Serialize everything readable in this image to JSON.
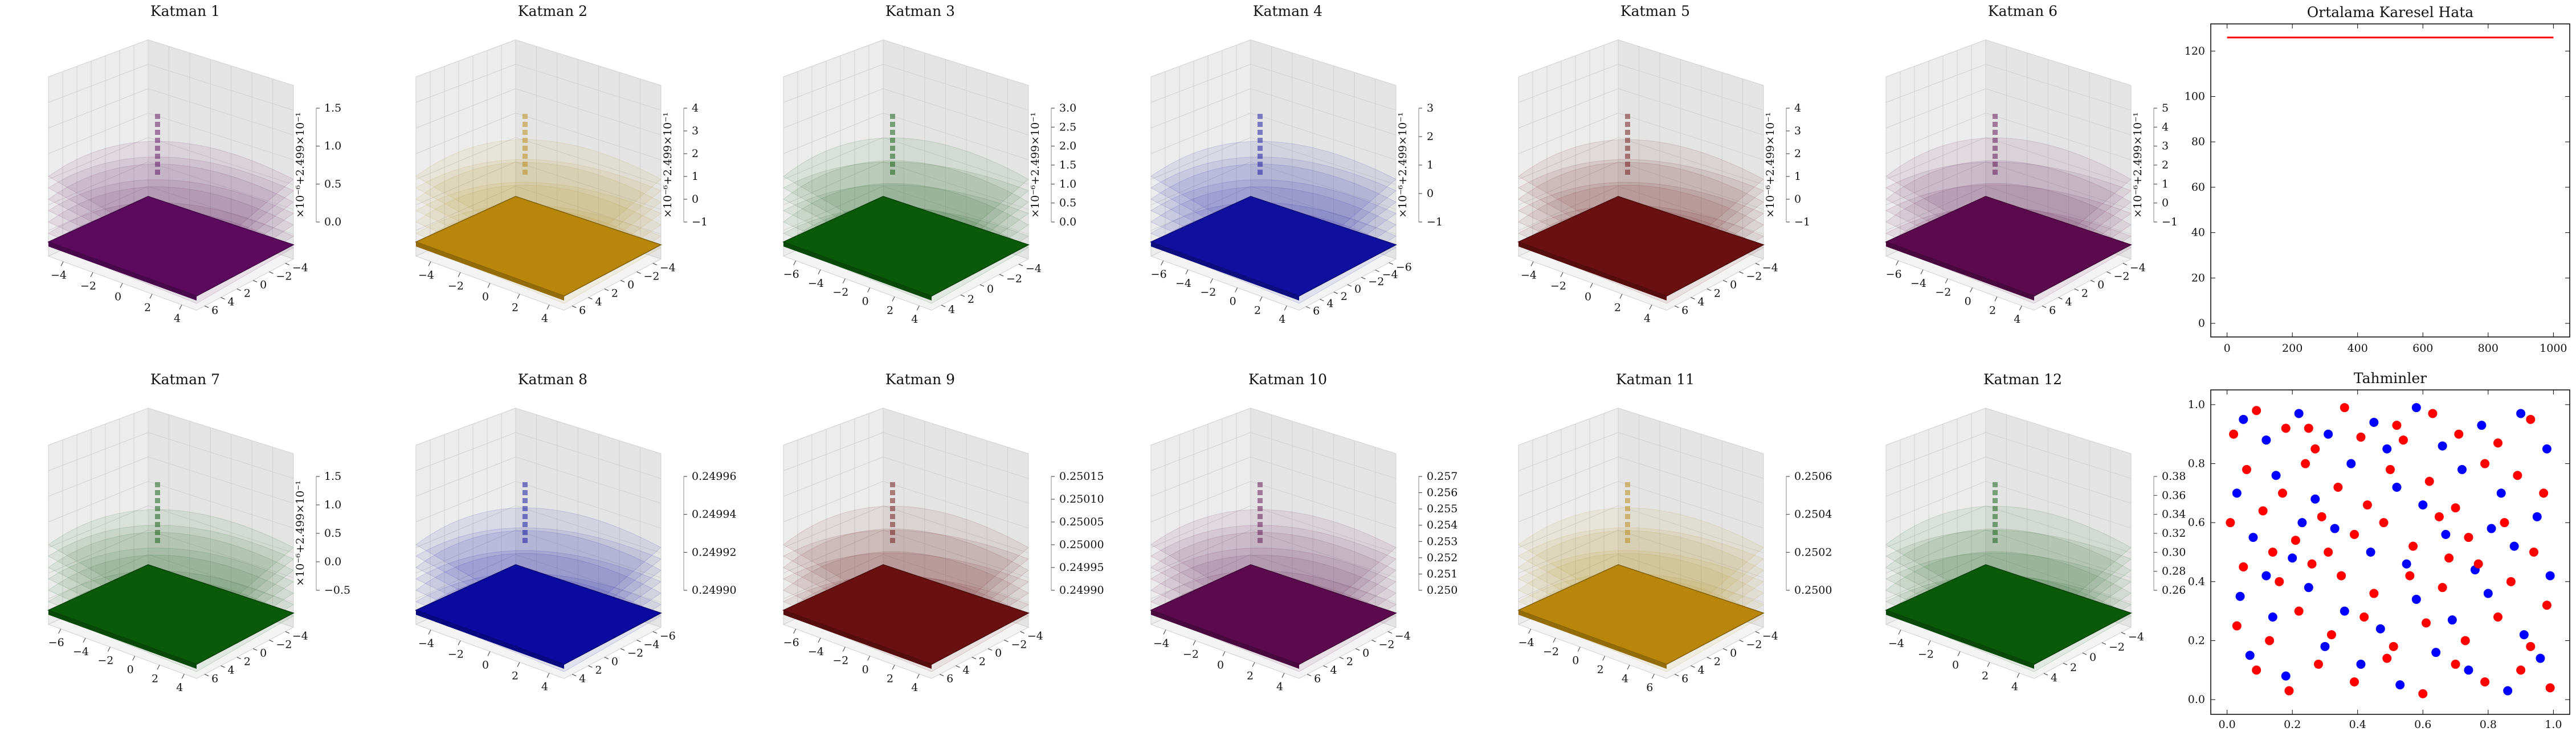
{
  "figure": {
    "surface_titles": [
      "Katman 1",
      "Katman 2",
      "Katman 3",
      "Katman 4",
      "Katman 5",
      "Katman 6",
      "Katman 7",
      "Katman 8",
      "Katman 9",
      "Katman 10",
      "Katman 11",
      "Katman 12"
    ],
    "offset_label": "×10⁻⁶+2.499×10⁻¹"
  },
  "chart_data": [
    {
      "type": "surface",
      "title": "Katman 1",
      "color": "#5b0a5e",
      "xticks": [
        "−4",
        "−2",
        "0",
        "2",
        "4"
      ],
      "yticks": [
        "−4",
        "−2",
        "0",
        "2",
        "4",
        "6"
      ],
      "zticks": [
        "0.0",
        "0.5",
        "1.0",
        "1.5"
      ],
      "offset": true
    },
    {
      "type": "surface",
      "title": "Katman 2",
      "color": "#b8860b",
      "xticks": [
        "−4",
        "−2",
        "0",
        "2",
        "4"
      ],
      "yticks": [
        "−4",
        "−2",
        "0",
        "2",
        "4",
        "6"
      ],
      "zticks": [
        "−1",
        "0",
        "1",
        "2",
        "3",
        "4"
      ],
      "offset": true
    },
    {
      "type": "surface",
      "title": "Katman 3",
      "color": "#0a5a0a",
      "xticks": [
        "−6",
        "−4",
        "−2",
        "0",
        "2",
        "4"
      ],
      "yticks": [
        "−4",
        "−2",
        "0",
        "2",
        "4"
      ],
      "zticks": [
        "0.0",
        "0.5",
        "1.0",
        "1.5",
        "2.0",
        "2.5",
        "3.0"
      ],
      "offset": true
    },
    {
      "type": "surface",
      "title": "Katman 4",
      "color": "#1010a0",
      "xticks": [
        "−6",
        "−4",
        "−2",
        "0",
        "2",
        "4"
      ],
      "yticks": [
        "−6",
        "−4",
        "−2",
        "0",
        "2",
        "4",
        "6"
      ],
      "zticks": [
        "−1",
        "0",
        "1",
        "2",
        "3"
      ],
      "offset": true
    },
    {
      "type": "surface",
      "title": "Katman 5",
      "color": "#6b1010",
      "xticks": [
        "−4",
        "−2",
        "0",
        "2",
        "4"
      ],
      "yticks": [
        "−4",
        "−2",
        "0",
        "2",
        "4",
        "6"
      ],
      "zticks": [
        "−1",
        "0",
        "1",
        "2",
        "3",
        "4"
      ],
      "offset": true
    },
    {
      "type": "surface",
      "title": "Katman 6",
      "color": "#5b0a4e",
      "xticks": [
        "−6",
        "−4",
        "−2",
        "0",
        "2",
        "4"
      ],
      "yticks": [
        "−4",
        "−2",
        "0",
        "2",
        "4",
        "6"
      ],
      "zticks": [
        "−1",
        "0",
        "1",
        "2",
        "3",
        "4",
        "5"
      ],
      "offset": true
    },
    {
      "type": "surface",
      "title": "Katman 7",
      "color": "#0a5a0a",
      "xticks": [
        "−6",
        "−4",
        "−2",
        "0",
        "2",
        "4"
      ],
      "yticks": [
        "−4",
        "−2",
        "0",
        "2",
        "4",
        "6"
      ],
      "zticks": [
        "−0.5",
        "0.0",
        "0.5",
        "1.0",
        "1.5"
      ],
      "offset": true
    },
    {
      "type": "surface",
      "title": "Katman 8",
      "color": "#0a0aa0",
      "xticks": [
        "−4",
        "−2",
        "0",
        "2",
        "4"
      ],
      "yticks": [
        "−6",
        "−4",
        "−2",
        "0",
        "2",
        "4"
      ],
      "zticks": [
        "0.24990",
        "0.24992",
        "0.24994",
        "0.24996"
      ],
      "offset": false
    },
    {
      "type": "surface",
      "title": "Katman 9",
      "color": "#6b1010",
      "xticks": [
        "−6",
        "−4",
        "−2",
        "0",
        "2",
        "4"
      ],
      "yticks": [
        "−4",
        "−2",
        "0",
        "2",
        "4",
        "6"
      ],
      "zticks": [
        "0.24990",
        "0.24995",
        "0.25000",
        "0.25005",
        "0.25010",
        "0.25015"
      ],
      "offset": false
    },
    {
      "type": "surface",
      "title": "Katman 10",
      "color": "#5b0a4e",
      "xticks": [
        "−4",
        "−2",
        "0",
        "2",
        "4"
      ],
      "yticks": [
        "−4",
        "−2",
        "0",
        "2",
        "4",
        "6"
      ],
      "zticks": [
        "0.250",
        "0.251",
        "0.252",
        "0.253",
        "0.254",
        "0.255",
        "0.256",
        "0.257"
      ],
      "offset": false
    },
    {
      "type": "surface",
      "title": "Katman 11",
      "color": "#b8860b",
      "xticks": [
        "−4",
        "−2",
        "0",
        "2",
        "4",
        "6"
      ],
      "yticks": [
        "−4",
        "−2",
        "0",
        "2",
        "4",
        "6"
      ],
      "zticks": [
        "0.2500",
        "0.2502",
        "0.2504",
        "0.2506"
      ],
      "offset": false
    },
    {
      "type": "surface",
      "title": "Katman 12",
      "color": "#0a5a0a",
      "xticks": [
        "−4",
        "−2",
        "0",
        "2",
        "4"
      ],
      "yticks": [
        "−4",
        "−2",
        "0",
        "2",
        "4"
      ],
      "zticks": [
        "0.26",
        "0.28",
        "0.30",
        "0.32",
        "0.34",
        "0.36",
        "0.38"
      ],
      "offset": false
    },
    {
      "type": "line",
      "title": "Ortalama Karesel Hata",
      "x": [
        0,
        1000
      ],
      "y": [
        126,
        126
      ],
      "xlim": [
        -50,
        1050
      ],
      "ylim": [
        -6,
        132
      ],
      "xticks": [
        0,
        200,
        400,
        600,
        800,
        1000
      ],
      "yticks": [
        0,
        20,
        40,
        60,
        80,
        100,
        120
      ],
      "color": "#ff0000"
    },
    {
      "type": "scatter",
      "title": "Tahminler",
      "xlim": [
        -0.05,
        1.05
      ],
      "ylim": [
        -0.05,
        1.05
      ],
      "xticks": [
        "0.0",
        "0.2",
        "0.4",
        "0.6",
        "0.8",
        "1.0"
      ],
      "yticks": [
        "0.0",
        "0.2",
        "0.4",
        "0.6",
        "0.8",
        "1.0"
      ],
      "series": [
        {
          "color": "#0000ff",
          "points": [
            [
              0.05,
              0.95
            ],
            [
              0.12,
              0.88
            ],
            [
              0.22,
              0.97
            ],
            [
              0.31,
              0.9
            ],
            [
              0.45,
              0.94
            ],
            [
              0.58,
              0.99
            ],
            [
              0.66,
              0.86
            ],
            [
              0.78,
              0.93
            ],
            [
              0.9,
              0.97
            ],
            [
              0.98,
              0.85
            ],
            [
              0.03,
              0.7
            ],
            [
              0.15,
              0.76
            ],
            [
              0.27,
              0.68
            ],
            [
              0.38,
              0.8
            ],
            [
              0.52,
              0.72
            ],
            [
              0.6,
              0.66
            ],
            [
              0.72,
              0.78
            ],
            [
              0.84,
              0.7
            ],
            [
              0.95,
              0.62
            ],
            [
              0.08,
              0.55
            ],
            [
              0.2,
              0.48
            ],
            [
              0.33,
              0.58
            ],
            [
              0.44,
              0.5
            ],
            [
              0.55,
              0.46
            ],
            [
              0.67,
              0.56
            ],
            [
              0.76,
              0.44
            ],
            [
              0.88,
              0.52
            ],
            [
              0.99,
              0.42
            ],
            [
              0.04,
              0.35
            ],
            [
              0.14,
              0.28
            ],
            [
              0.25,
              0.38
            ],
            [
              0.36,
              0.3
            ],
            [
              0.47,
              0.24
            ],
            [
              0.58,
              0.34
            ],
            [
              0.69,
              0.27
            ],
            [
              0.8,
              0.36
            ],
            [
              0.91,
              0.22
            ],
            [
              0.07,
              0.15
            ],
            [
              0.18,
              0.08
            ],
            [
              0.3,
              0.18
            ],
            [
              0.41,
              0.12
            ],
            [
              0.53,
              0.05
            ],
            [
              0.64,
              0.16
            ],
            [
              0.74,
              0.1
            ],
            [
              0.86,
              0.03
            ],
            [
              0.96,
              0.14
            ],
            [
              0.23,
              0.6
            ],
            [
              0.49,
              0.85
            ],
            [
              0.81,
              0.58
            ],
            [
              0.12,
              0.42
            ]
          ]
        },
        {
          "color": "#ff0000",
          "points": [
            [
              0.02,
              0.9
            ],
            [
              0.09,
              0.98
            ],
            [
              0.18,
              0.92
            ],
            [
              0.27,
              0.85
            ],
            [
              0.36,
              0.99
            ],
            [
              0.41,
              0.89
            ],
            [
              0.52,
              0.93
            ],
            [
              0.63,
              0.97
            ],
            [
              0.71,
              0.9
            ],
            [
              0.83,
              0.87
            ],
            [
              0.93,
              0.95
            ],
            [
              0.06,
              0.78
            ],
            [
              0.17,
              0.7
            ],
            [
              0.24,
              0.8
            ],
            [
              0.34,
              0.72
            ],
            [
              0.43,
              0.66
            ],
            [
              0.5,
              0.78
            ],
            [
              0.62,
              0.74
            ],
            [
              0.7,
              0.65
            ],
            [
              0.79,
              0.8
            ],
            [
              0.89,
              0.76
            ],
            [
              0.97,
              0.7
            ],
            [
              0.01,
              0.6
            ],
            [
              0.11,
              0.64
            ],
            [
              0.21,
              0.54
            ],
            [
              0.29,
              0.62
            ],
            [
              0.39,
              0.56
            ],
            [
              0.48,
              0.6
            ],
            [
              0.57,
              0.52
            ],
            [
              0.65,
              0.62
            ],
            [
              0.74,
              0.55
            ],
            [
              0.85,
              0.6
            ],
            [
              0.94,
              0.5
            ],
            [
              0.05,
              0.45
            ],
            [
              0.16,
              0.4
            ],
            [
              0.26,
              0.46
            ],
            [
              0.35,
              0.42
            ],
            [
              0.45,
              0.36
            ],
            [
              0.56,
              0.42
            ],
            [
              0.66,
              0.38
            ],
            [
              0.77,
              0.46
            ],
            [
              0.87,
              0.4
            ],
            [
              0.98,
              0.32
            ],
            [
              0.03,
              0.25
            ],
            [
              0.13,
              0.2
            ],
            [
              0.22,
              0.3
            ],
            [
              0.32,
              0.22
            ],
            [
              0.42,
              0.28
            ],
            [
              0.51,
              0.18
            ],
            [
              0.61,
              0.26
            ],
            [
              0.73,
              0.2
            ],
            [
              0.83,
              0.28
            ],
            [
              0.93,
              0.18
            ],
            [
              0.09,
              0.1
            ],
            [
              0.19,
              0.03
            ],
            [
              0.28,
              0.12
            ],
            [
              0.39,
              0.06
            ],
            [
              0.49,
              0.14
            ],
            [
              0.6,
              0.02
            ],
            [
              0.7,
              0.12
            ],
            [
              0.79,
              0.06
            ],
            [
              0.9,
              0.1
            ],
            [
              0.99,
              0.04
            ],
            [
              0.31,
              0.5
            ],
            [
              0.68,
              0.48
            ],
            [
              0.54,
              0.88
            ],
            [
              0.25,
              0.92
            ],
            [
              0.14,
              0.5
            ]
          ]
        }
      ]
    }
  ]
}
